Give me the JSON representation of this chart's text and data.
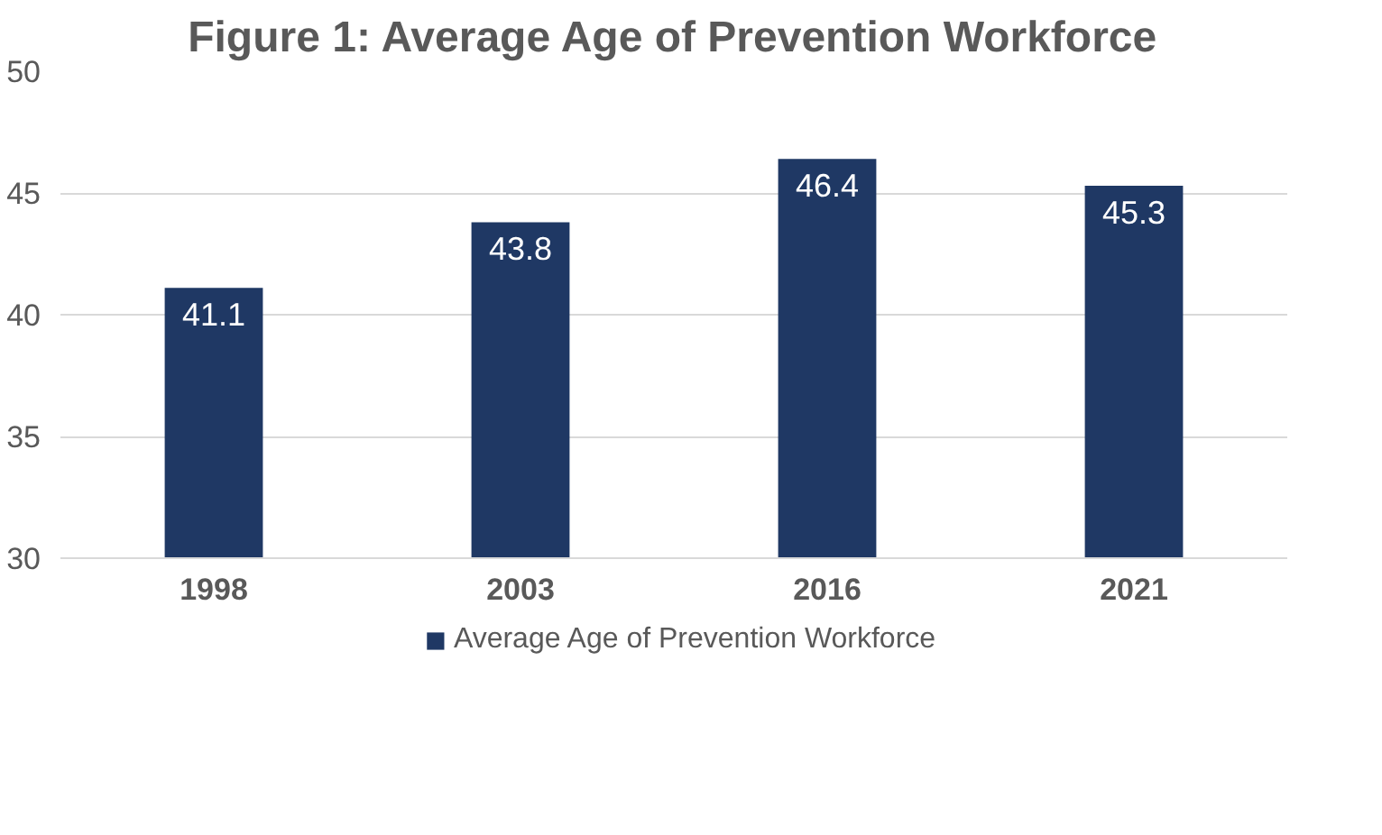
{
  "chart_data": {
    "type": "bar",
    "title": "Figure 1: Average Age of Prevention Workforce",
    "categories": [
      "1998",
      "2003",
      "2016",
      "2021"
    ],
    "series": [
      {
        "name": "Average Age of Prevention Workforce",
        "color": "#1f3864",
        "values": [
          41.1,
          43.8,
          46.4,
          45.3
        ]
      }
    ],
    "ylim": [
      30,
      50
    ],
    "yticks": [
      30,
      35,
      40,
      45,
      50
    ],
    "grid": "y",
    "legend": "bottom",
    "data_labels": true
  }
}
